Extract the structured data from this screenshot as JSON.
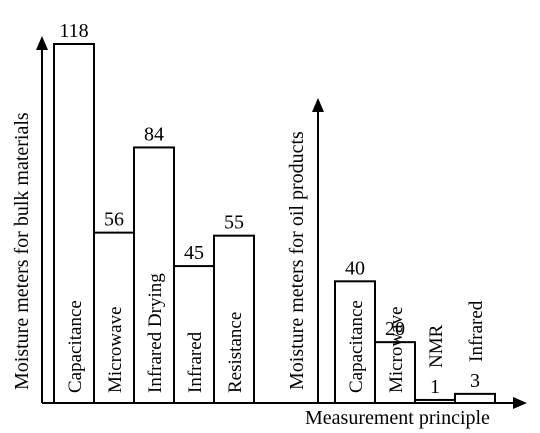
{
  "chart_data": {
    "type": "bar",
    "xlabel": "Measurement principle",
    "groups": [
      {
        "ylabel": "Moisture meters for bulk materials",
        "categories": [
          "Capacitance",
          "Microwave",
          "Infrared Drying",
          "Infrared",
          "Resistance"
        ],
        "values": [
          118,
          56,
          84,
          45,
          55
        ]
      },
      {
        "ylabel": "Moisture meters for oil products",
        "categories": [
          "Capacitance",
          "Microwave",
          "NMR",
          "Infrared"
        ],
        "values": [
          40,
          20,
          1,
          3
        ]
      }
    ],
    "colors": {
      "bar_fill": "#ffffff",
      "bar_stroke": "#000000"
    }
  }
}
